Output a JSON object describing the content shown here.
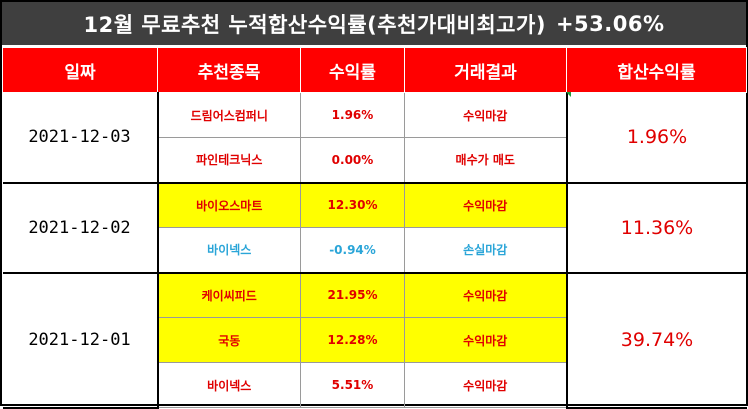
{
  "title": {
    "main": "12월 무료추천 누적합산수익률(추천가대비최고가)",
    "value": "+53.06%"
  },
  "headers": {
    "date": "일짜",
    "stock": "추천종목",
    "return": "수익률",
    "result": "거래결과",
    "sum": "합산수익률"
  },
  "groups": [
    {
      "date": "2021-12-03",
      "sum": "1.96%",
      "rows": [
        {
          "stock": "드림어스컴퍼니",
          "return": "1.96%",
          "result": "수익마감"
        },
        {
          "stock": "파인테크닉스",
          "return": "0.00%",
          "result": "매수가 매도"
        }
      ]
    },
    {
      "date": "2021-12-02",
      "sum": "11.36%",
      "rows": [
        {
          "stock": "바이오스마트",
          "return": "12.30%",
          "result": "수익마감"
        },
        {
          "stock": "바이넥스",
          "return": "-0.94%",
          "result": "손실마감"
        }
      ]
    },
    {
      "date": "2021-12-01",
      "sum": "39.74%",
      "rows": [
        {
          "stock": "케이씨피드",
          "return": "21.95%",
          "result": "수익마감"
        },
        {
          "stock": "국동",
          "return": "12.28%",
          "result": "수익마감"
        },
        {
          "stock": "바이넥스",
          "return": "5.51%",
          "result": "수익마감"
        }
      ]
    }
  ],
  "colors": {
    "header_bg": "#ff0000",
    "title_bg": "#3f3f3f",
    "profit": "#e00000",
    "loss": "#2aa5d8",
    "highlight": "#ffff00"
  }
}
